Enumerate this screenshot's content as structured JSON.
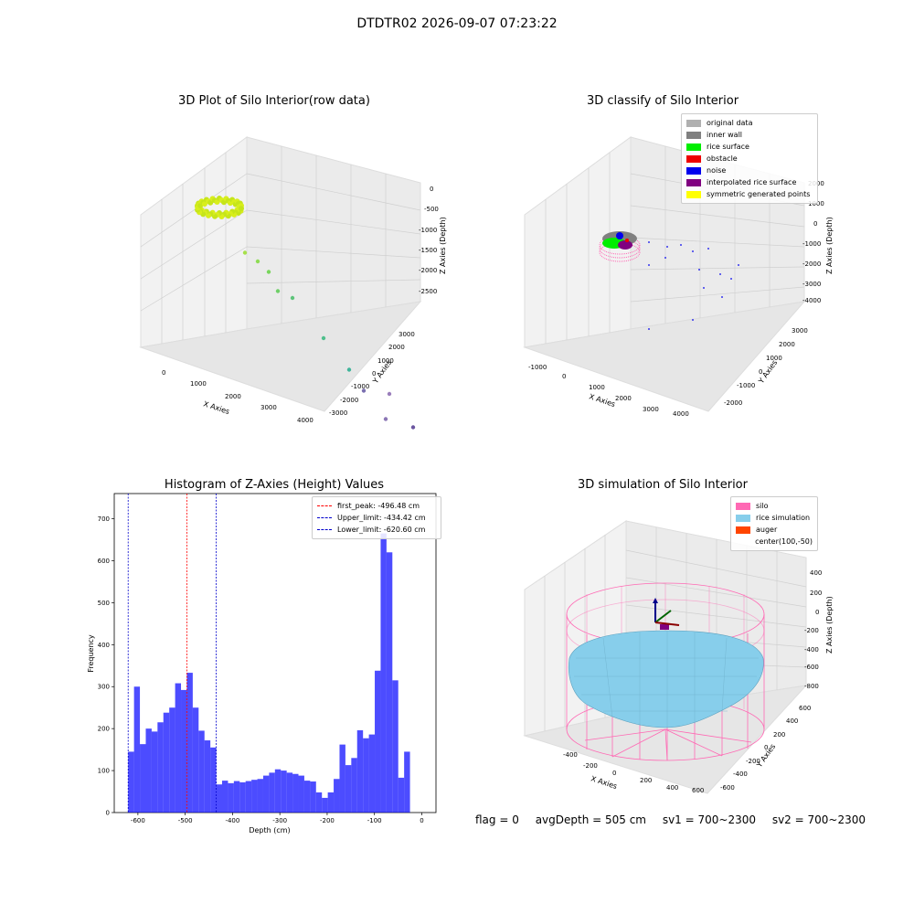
{
  "suptitle": "DTDTR02 2026-09-07 07:23:22",
  "panels": {
    "raw": {
      "title": "3D Plot of Silo Interior(row data)",
      "xlabel": "X Axies",
      "ylabel": "Y Axies",
      "zlabel": "Z Axies (Depth)",
      "xticks": [
        "0",
        "1000",
        "2000",
        "3000",
        "4000"
      ],
      "yticks": [
        "3000",
        "2000",
        "1000",
        "0",
        "-1000",
        "-2000",
        "-3000"
      ],
      "zticks": [
        "0",
        "-500",
        "-1000",
        "-1500",
        "-2000",
        "-2500"
      ]
    },
    "classify": {
      "title": "3D classify of Silo Interior",
      "xlabel": "X Axies",
      "ylabel": "Y Axies",
      "zlabel": "Z Axies (Depth)",
      "xticks": [
        "-1000",
        "0",
        "1000",
        "2000",
        "3000",
        "4000"
      ],
      "yticks": [
        "3000",
        "2000",
        "1000",
        "0",
        "-1000",
        "-2000"
      ],
      "zticks": [
        "2000",
        "1000",
        "0",
        "-1000",
        "-2000",
        "-3000",
        "-4000"
      ],
      "legend": [
        {
          "label": "original data",
          "color": "#b0b0b0"
        },
        {
          "label": "inner wall",
          "color": "#808080"
        },
        {
          "label": "rice surface",
          "color": "#00ee00"
        },
        {
          "label": "obstacle",
          "color": "#ee0000"
        },
        {
          "label": "noise",
          "color": "#0000ee"
        },
        {
          "label": "interpolated rice surface",
          "color": "#800080"
        },
        {
          "label": "symmetric generated points",
          "color": "#ffff00"
        }
      ]
    },
    "hist": {
      "title": "Histogram of Z-Axies (Height) Values",
      "xlabel": "Depth (cm)",
      "ylabel": "Frequency",
      "legend": [
        {
          "label": "first_peak: -496.48 cm",
          "color": "#ff0000"
        },
        {
          "label": "Upper_limit: -434.42 cm",
          "color": "#0000cc"
        },
        {
          "label": "Lower_limit: -620.60 cm",
          "color": "#0000cc"
        }
      ]
    },
    "sim": {
      "title": "3D simulation of Silo Interior",
      "xlabel": "X Axies",
      "ylabel": "Y Axies",
      "zlabel": "Z Axies (Depth)",
      "xticks": [
        "-400",
        "-200",
        "0",
        "200",
        "400",
        "600"
      ],
      "yticks": [
        "600",
        "400",
        "200",
        "0",
        "-200",
        "-400",
        "-600"
      ],
      "zticks": [
        "400",
        "200",
        "0",
        "-200",
        "-400",
        "-600",
        "-800"
      ],
      "legend": [
        {
          "label": "silo",
          "color": "#ff69b4"
        },
        {
          "label": "rice simulation",
          "color": "#87ceeb"
        },
        {
          "label": "auger",
          "color": "#ff4500"
        },
        {
          "label": "center(100,-50)",
          "color": ""
        }
      ]
    }
  },
  "footer": {
    "flag": "flag = 0",
    "avg": "avgDepth = 505 cm",
    "sv1": "sv1 = 700~2300",
    "sv2": "sv2 = 700~2300"
  },
  "chart_data": [
    {
      "type": "scatter",
      "title": "3D Plot of Silo Interior(row data)",
      "xlabel": "X Axies",
      "ylabel": "Y Axies",
      "zlabel": "Z Axies (Depth)",
      "xlim": [
        -500,
        4000
      ],
      "ylim": [
        -3000,
        3500
      ],
      "zlim": [
        -3000,
        200
      ],
      "note_points": "ring of points near origin (rice/wall) plus scattered outliers",
      "points": [
        {
          "x": 400,
          "y": 200,
          "z": -700
        },
        {
          "x": 600,
          "y": 300,
          "z": -800
        },
        {
          "x": 800,
          "y": 300,
          "z": -900
        },
        {
          "x": 1000,
          "y": 200,
          "z": -1100
        },
        {
          "x": 1200,
          "y": 400,
          "z": -1200
        },
        {
          "x": 1800,
          "y": 300,
          "z": -1600
        },
        {
          "x": 2300,
          "y": 200,
          "z": -1900
        },
        {
          "x": 2600,
          "y": 100,
          "z": -2100
        },
        {
          "x": 3100,
          "y": -200,
          "z": -2300
        },
        {
          "x": 2900,
          "y": 600,
          "z": -2200
        },
        {
          "x": 3400,
          "y": 400,
          "z": -2500
        },
        {
          "x": 2000,
          "y": -900,
          "z": -2700
        }
      ]
    },
    {
      "type": "scatter",
      "title": "3D classify of Silo Interior",
      "xlabel": "X Axies",
      "ylabel": "Y Axies",
      "zlabel": "Z Axies (Depth)",
      "xlim": [
        -1500,
        4500
      ],
      "ylim": [
        -2500,
        3500
      ],
      "zlim": [
        -4500,
        2500
      ],
      "series": [
        {
          "name": "original data",
          "points": []
        },
        {
          "name": "inner wall",
          "points": []
        },
        {
          "name": "rice surface",
          "points": []
        },
        {
          "name": "obstacle",
          "points": []
        },
        {
          "name": "noise",
          "points": []
        },
        {
          "name": "interpolated rice surface",
          "points": []
        },
        {
          "name": "symmetric generated points",
          "points": []
        }
      ]
    },
    {
      "type": "bar",
      "title": "Histogram of Z-Axies (Height) Values",
      "xlabel": "Depth (cm)",
      "ylabel": "Frequency",
      "xlim": [
        -650,
        30
      ],
      "ylim": [
        0,
        760
      ],
      "xticks": [
        -600,
        -500,
        -400,
        -300,
        -200,
        -100,
        0
      ],
      "yticks": [
        0,
        100,
        200,
        300,
        400,
        500,
        600,
        700
      ],
      "bin_width": 12.41,
      "bin_start": -620.6,
      "values": [
        145,
        300,
        163,
        200,
        193,
        215,
        238,
        250,
        308,
        292,
        333,
        250,
        195,
        172,
        155,
        67,
        76,
        70,
        75,
        72,
        75,
        78,
        80,
        88,
        95,
        103,
        100,
        95,
        92,
        88,
        76,
        74,
        48,
        35,
        48,
        80,
        162,
        113,
        130,
        196,
        177,
        186,
        338,
        665,
        620,
        315,
        83,
        145
      ],
      "color": "#0000ff",
      "vlines": [
        {
          "name": "first_peak",
          "x": -496.48,
          "color": "#ff0000"
        },
        {
          "name": "Upper_limit",
          "x": -434.42,
          "color": "#0000cc"
        },
        {
          "name": "Lower_limit",
          "x": -620.6,
          "color": "#0000cc"
        }
      ]
    },
    {
      "type": "surface",
      "title": "3D simulation of Silo Interior",
      "xlabel": "X Axies",
      "ylabel": "Y Axies",
      "zlabel": "Z Axies (Depth)",
      "xlim": [
        -500,
        700
      ],
      "ylim": [
        -700,
        700
      ],
      "zlim": [
        -900,
        500
      ],
      "series": [
        {
          "name": "silo",
          "color": "#ff69b4"
        },
        {
          "name": "rice simulation",
          "color": "#87ceeb"
        },
        {
          "name": "auger",
          "color": "#ff4500"
        }
      ],
      "center": [
        100,
        -50
      ]
    }
  ]
}
